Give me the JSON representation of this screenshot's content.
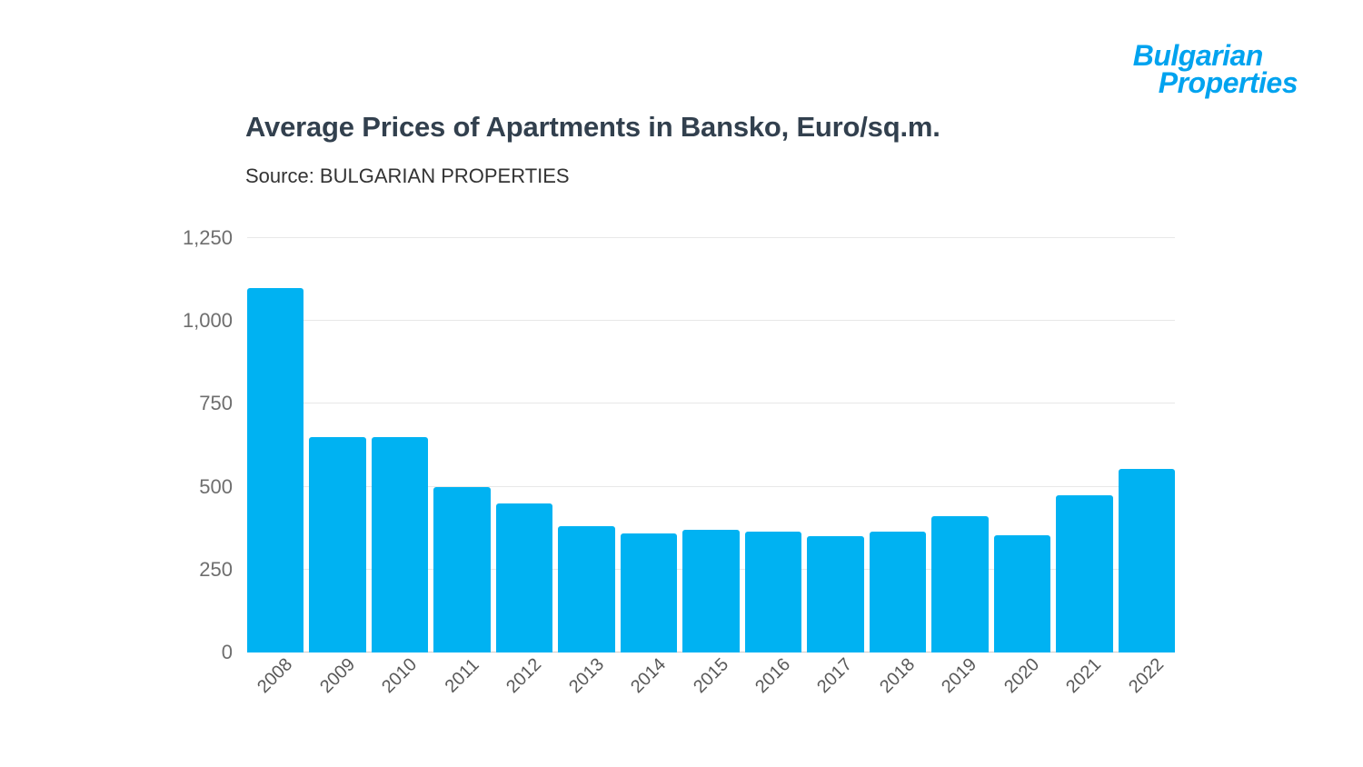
{
  "logo": {
    "line1": "Bulgarian",
    "line2": "Properties",
    "color": "#00a3ef"
  },
  "header": {
    "title": "Average Prices of Apartments in Bansko, Euro/sq.m.",
    "source": "Source: BULGARIAN PROPERTIES"
  },
  "chart_data": {
    "type": "bar",
    "title": "Average Prices of Apartments in Bansko, Euro/sq.m.",
    "source": "Source: BULGARIAN PROPERTIES",
    "categories": [
      "2008",
      "2009",
      "2010",
      "2011",
      "2012",
      "2013",
      "2014",
      "2015",
      "2016",
      "2017",
      "2018",
      "2019",
      "2020",
      "2021",
      "2022"
    ],
    "values": [
      1100,
      650,
      650,
      500,
      450,
      380,
      360,
      370,
      365,
      350,
      365,
      410,
      355,
      475,
      555
    ],
    "xlabel": "",
    "ylabel": "",
    "ylim": [
      0,
      1250
    ],
    "yticks": [
      0,
      250,
      500,
      750,
      1000,
      1250
    ],
    "ytick_labels": [
      "0",
      "250",
      "500",
      "750",
      "1,000",
      "1,250"
    ],
    "bar_color": "#00b2f2",
    "grid": true,
    "legend": "none"
  }
}
